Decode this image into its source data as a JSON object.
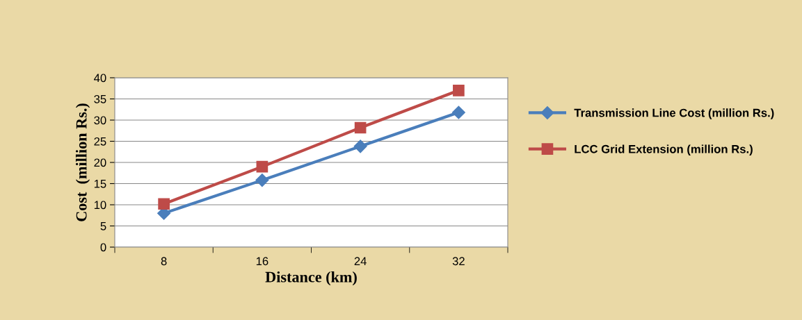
{
  "chart_data": {
    "type": "line",
    "xlabel": "Distance (km)",
    "ylabel": "Cost  (million Rs.)",
    "categories": [
      "8",
      "16",
      "24",
      "32"
    ],
    "series": [
      {
        "name": "Transmission Line Cost (million Rs.)",
        "color": "#4a7ebb",
        "values": [
          8,
          15.8,
          23.8,
          31.8
        ],
        "marker": "diamond"
      },
      {
        "name": "LCC Grid Extension (million Rs.)",
        "color": "#be4b48",
        "values": [
          10.2,
          19,
          28.2,
          37
        ],
        "marker": "square"
      }
    ],
    "ylim": [
      0,
      40
    ],
    "yticks": [
      0,
      5,
      10,
      15,
      20,
      25,
      30,
      35,
      40
    ],
    "grid": "y",
    "legend": "right",
    "line_style": "solid"
  }
}
